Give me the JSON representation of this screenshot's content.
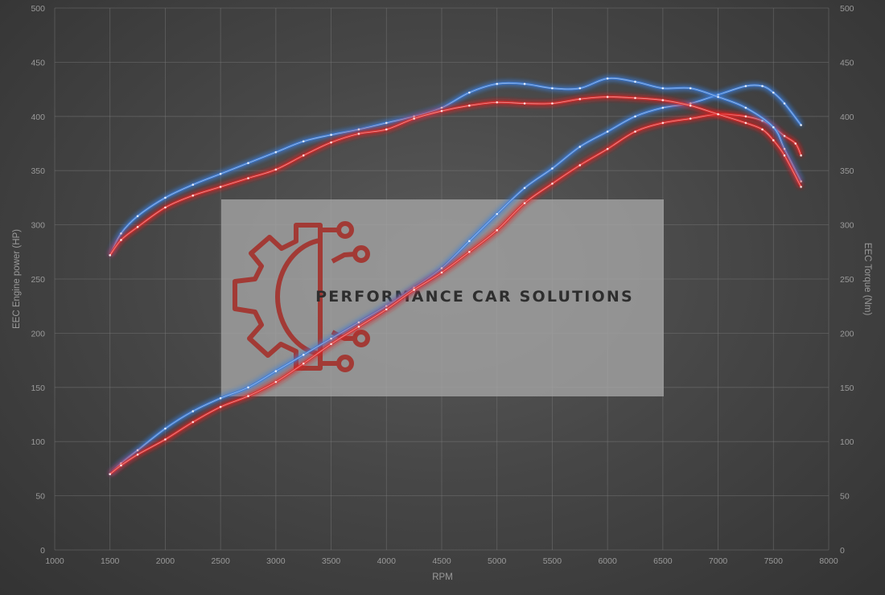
{
  "chart_data": {
    "type": "line",
    "xlabel": "RPM",
    "ylabel_left": "EEC Engine power (HP)",
    "ylabel_right": "EEC Torque (Nm)",
    "xlim": [
      1000,
      8000
    ],
    "ylim_left": [
      0,
      500
    ],
    "ylim_right": [
      0,
      500
    ],
    "x_ticks": [
      1000,
      1500,
      2000,
      2500,
      3000,
      3500,
      4000,
      4500,
      5000,
      5500,
      6000,
      6500,
      7000,
      7500,
      8000
    ],
    "y_ticks": [
      0,
      50,
      100,
      150,
      200,
      250,
      300,
      350,
      400,
      450,
      500
    ],
    "grid": true,
    "series": [
      {
        "axis": "left",
        "color": "#3f7fdc",
        "x": [
          1500,
          1600,
          1750,
          2000,
          2250,
          2500,
          2750,
          3000,
          3250,
          3500,
          3750,
          4000,
          4250,
          4500,
          4750,
          5000,
          5250,
          5500,
          5750,
          6000,
          6250,
          6500,
          6750,
          7000,
          7250,
          7400,
          7500,
          7600,
          7750
        ],
        "y": [
          70,
          80,
          92,
          112,
          128,
          140,
          150,
          165,
          180,
          195,
          210,
          225,
          242,
          260,
          285,
          310,
          334,
          352,
          372,
          386,
          400,
          408,
          412,
          420,
          428,
          428,
          422,
          412,
          392
        ]
      },
      {
        "axis": "left",
        "color": "#e02a2a",
        "x": [
          1500,
          1600,
          1750,
          2000,
          2250,
          2500,
          2750,
          3000,
          3250,
          3500,
          3750,
          4000,
          4250,
          4500,
          4750,
          5000,
          5250,
          5500,
          5750,
          6000,
          6250,
          6500,
          6750,
          7000,
          7250,
          7400,
          7500,
          7600,
          7700,
          7750
        ],
        "y": [
          70,
          78,
          88,
          102,
          118,
          132,
          142,
          155,
          172,
          190,
          206,
          222,
          240,
          256,
          275,
          295,
          320,
          338,
          355,
          370,
          386,
          394,
          398,
          402,
          400,
          396,
          390,
          382,
          375,
          364
        ]
      },
      {
        "axis": "right",
        "color": "#3f7fdc",
        "x": [
          1500,
          1600,
          1750,
          2000,
          2250,
          2500,
          2750,
          3000,
          3250,
          3500,
          3750,
          4000,
          4250,
          4500,
          4750,
          5000,
          5250,
          5500,
          5750,
          6000,
          6250,
          6500,
          6750,
          7000,
          7250,
          7500,
          7600,
          7750
        ],
        "y": [
          272,
          292,
          308,
          325,
          337,
          347,
          357,
          367,
          377,
          383,
          388,
          394,
          400,
          408,
          422,
          430,
          430,
          426,
          426,
          435,
          432,
          426,
          426,
          418,
          408,
          390,
          370,
          340
        ]
      },
      {
        "axis": "right",
        "color": "#e02a2a",
        "x": [
          1500,
          1600,
          1750,
          2000,
          2250,
          2500,
          2750,
          3000,
          3250,
          3500,
          3750,
          4000,
          4250,
          4500,
          4750,
          5000,
          5250,
          5500,
          5750,
          6000,
          6250,
          6500,
          6750,
          7000,
          7250,
          7400,
          7500,
          7600,
          7750
        ],
        "y": [
          272,
          286,
          298,
          316,
          327,
          335,
          343,
          351,
          364,
          376,
          384,
          388,
          398,
          405,
          410,
          413,
          412,
          412,
          416,
          418,
          417,
          415,
          410,
          402,
          394,
          388,
          378,
          364,
          335
        ]
      }
    ]
  },
  "watermark": {
    "text": "PERFORMANCE CAR SOLUTIONS",
    "logo": "gear-circuit-logo",
    "gear_color": "#a23a35",
    "panel_color": "#a6a6a6"
  }
}
